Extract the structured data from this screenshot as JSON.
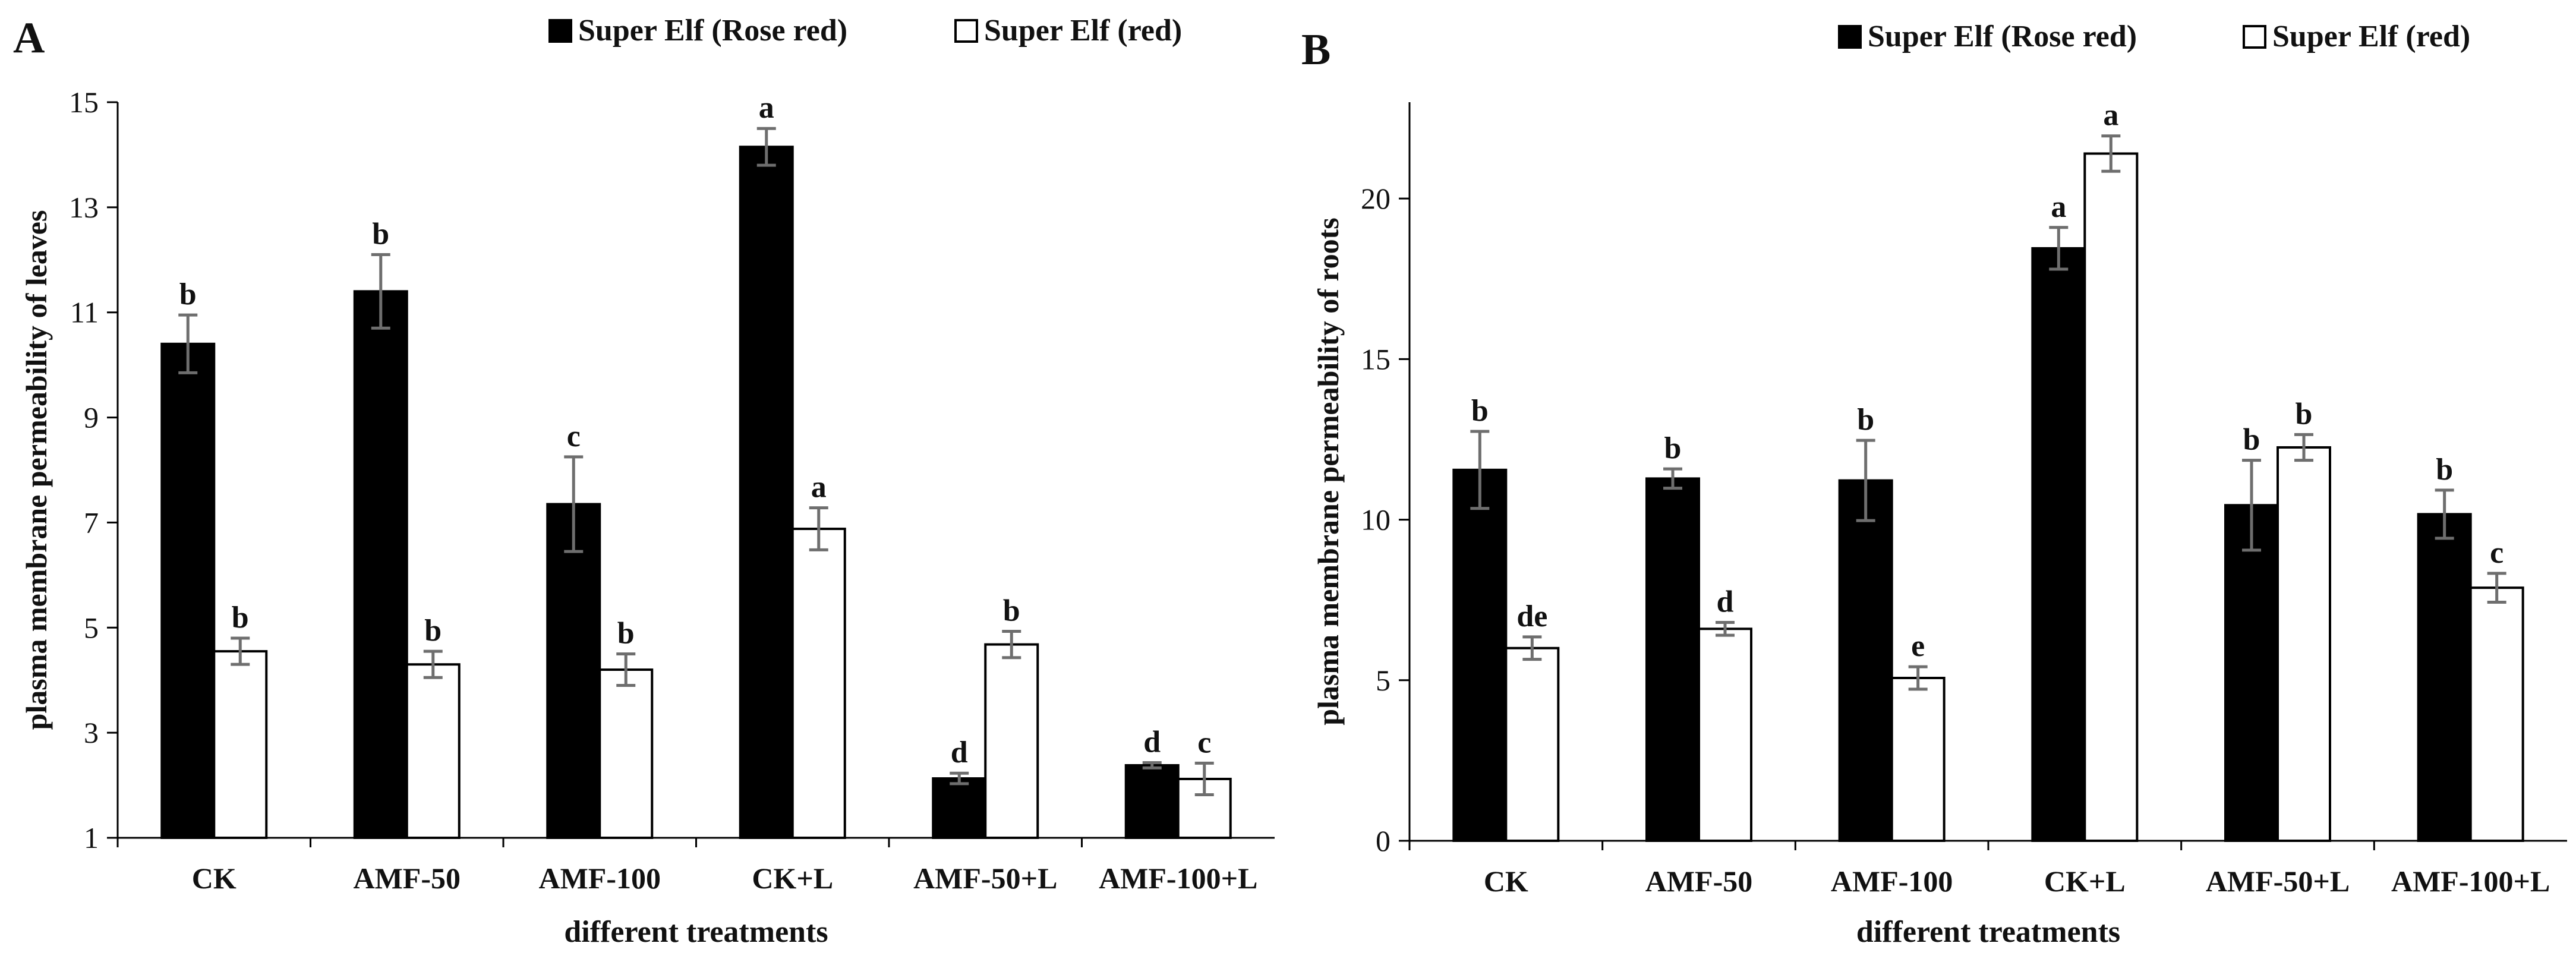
{
  "chart_data": [
    {
      "type": "bar",
      "panel": "A",
      "title": "",
      "xlabel": "different treatments",
      "ylabel": "plasma membrane permeability of leaves",
      "ylim": [
        1,
        15
      ],
      "yticks": [
        1,
        3,
        5,
        7,
        9,
        11,
        13,
        15
      ],
      "grid": false,
      "legend_position": "top",
      "categories": [
        "CK",
        "AMF-50",
        "AMF-100",
        "CK+L",
        "AMF-50+L",
        "AMF-100+L"
      ],
      "series": [
        {
          "name": "Super Elf (Rose red)",
          "color": "#000000",
          "values": [
            10.4,
            11.4,
            7.35,
            14.15,
            2.13,
            2.38
          ],
          "errors": [
            0.55,
            0.7,
            0.9,
            0.35,
            0.1,
            0.05
          ],
          "labels": [
            "b",
            "b",
            "c",
            "a",
            "d",
            "d"
          ]
        },
        {
          "name": "Super Elf (red)",
          "color": "#ffffff",
          "values": [
            4.55,
            4.3,
            4.2,
            6.88,
            4.68,
            2.12
          ],
          "errors": [
            0.25,
            0.25,
            0.3,
            0.4,
            0.25,
            0.3
          ],
          "labels": [
            "b",
            "b",
            "b",
            "a",
            "b",
            "c"
          ]
        }
      ]
    },
    {
      "type": "bar",
      "panel": "B",
      "title": "",
      "xlabel": "different treatments",
      "ylabel": "plasma membrane permeability of roots",
      "ylim": [
        0,
        23
      ],
      "yticks": [
        0,
        5,
        10,
        15,
        20
      ],
      "grid": false,
      "legend_position": "top",
      "categories": [
        "CK",
        "AMF-50",
        "AMF-100",
        "CK+L",
        "AMF-50+L",
        "AMF-100+L"
      ],
      "series": [
        {
          "name": "Super Elf (Rose red)",
          "color": "#000000",
          "values": [
            11.55,
            11.28,
            11.22,
            18.45,
            10.45,
            10.17
          ],
          "errors": [
            1.2,
            0.3,
            1.25,
            0.65,
            1.4,
            0.75
          ],
          "labels": [
            "b",
            "b",
            "b",
            "a",
            "b",
            "b"
          ]
        },
        {
          "name": "Super Elf (red)",
          "color": "#ffffff",
          "values": [
            6.0,
            6.6,
            5.07,
            21.4,
            12.25,
            7.88
          ],
          "errors": [
            0.35,
            0.2,
            0.35,
            0.55,
            0.4,
            0.45
          ],
          "labels": [
            "de",
            "d",
            "e",
            "a",
            "b",
            "c"
          ]
        }
      ]
    }
  ]
}
